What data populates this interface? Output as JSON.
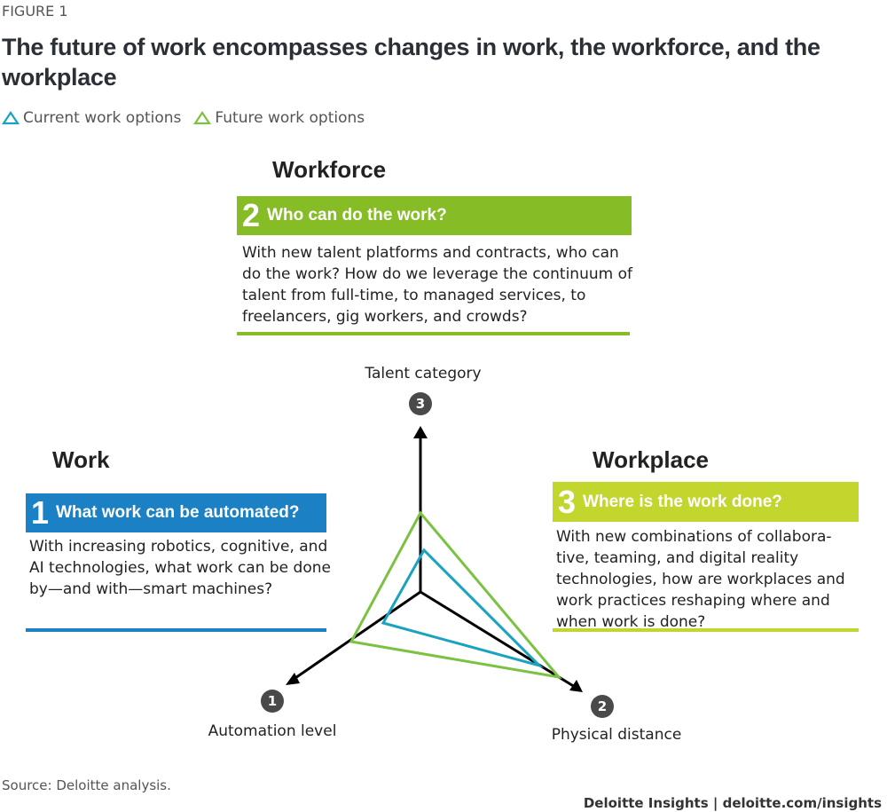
{
  "figure_label": "FIGURE 1",
  "title": "The future of work encompasses changes in work, the workforce, and the workplace",
  "legend": [
    {
      "label": "Current work options",
      "color": "#1aa3c0"
    },
    {
      "label": "Future work options",
      "color": "#7cc242"
    }
  ],
  "sections": {
    "workforce": {
      "heading": "Workforce",
      "num": "2",
      "question": "Who can do the work?",
      "body": "With new talent platforms and contracts, who can do the work? How do we leverage the continuum of talent from full-time, to managed services, to freelancers, gig workers, and crowds?",
      "color": "#86bc25"
    },
    "work": {
      "heading": "Work",
      "num": "1",
      "question": "What work can be automated?",
      "body": "With increasing robotics, cognitive, and AI technologies, what work can be done by—and with—smart machines?",
      "color": "#1b80c4"
    },
    "workplace": {
      "heading": "Workplace",
      "num": "3",
      "question": "Where is the work done?",
      "body": "With new combinations of collabora-tive, teaming, and digital reality technologies, how are workplaces and work practices reshaping where and when work is done?",
      "color": "#c2d62e"
    }
  },
  "axes": [
    {
      "num": "1",
      "label": "Automation level"
    },
    {
      "num": "2",
      "label": "Physical distance"
    },
    {
      "num": "3",
      "label": "Talent category"
    }
  ],
  "source": "Source: Deloitte analysis.",
  "brand": "Deloitte Insights | deloitte.com/insights"
}
